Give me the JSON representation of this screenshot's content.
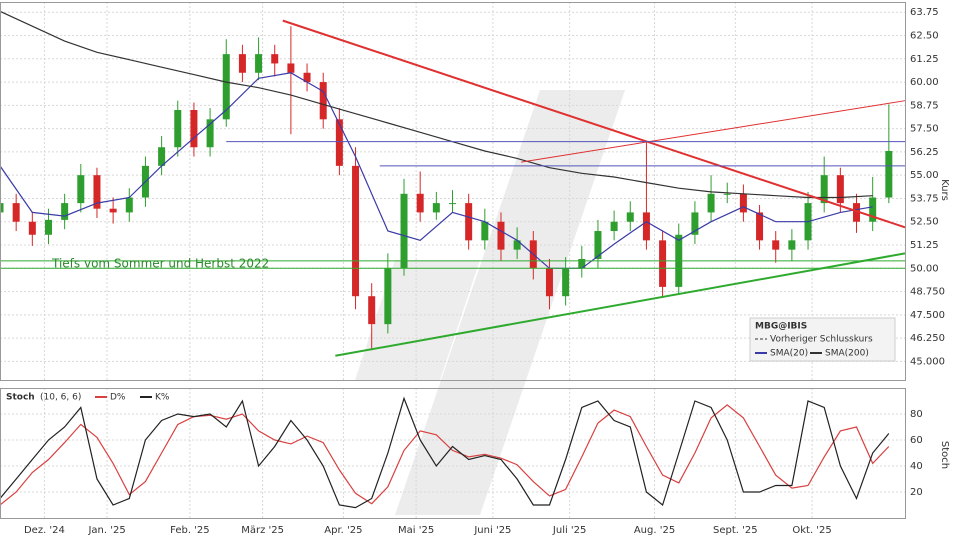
{
  "chart_data": [
    {
      "type": "candlestick",
      "legend_title": "MBG@IBIS",
      "legend_note": "Vorheriger Schlusskurs",
      "y_label": "Kurs",
      "annotation": "Tiefs vom Sommer und Herbst 2022",
      "up_color": "#2e9e2e",
      "down_color": "#d62728",
      "x": [
        0,
        4,
        8,
        12,
        16,
        20,
        24,
        28,
        32,
        36,
        40,
        44,
        48,
        52,
        56,
        60,
        64,
        68,
        72,
        76,
        80,
        84,
        88,
        92,
        96,
        100,
        104,
        108,
        112,
        116,
        120,
        124,
        128,
        132,
        136,
        140,
        144,
        148,
        152,
        156,
        160,
        164,
        168,
        172,
        176,
        180,
        184,
        188,
        192,
        196,
        200,
        204,
        208,
        212,
        216,
        220
      ],
      "open": [
        53.0,
        53.5,
        52.5,
        51.8,
        52.6,
        53.5,
        55.0,
        53.2,
        53.0,
        53.8,
        55.5,
        56.5,
        58.5,
        56.5,
        58.0,
        61.5,
        60.5,
        61.5,
        61.0,
        60.5,
        60.0,
        58.0,
        55.5,
        48.5,
        47.0,
        50.0,
        54.0,
        53.0,
        53.5,
        53.5,
        51.5,
        52.5,
        51.0,
        51.5,
        50.0,
        48.5,
        50.0,
        50.5,
        52.0,
        52.5,
        53.0,
        51.5,
        49.0,
        51.8,
        53.0,
        54.0,
        54.0,
        53.0,
        51.5,
        51.0,
        51.5,
        53.5,
        55.0,
        53.5,
        52.5,
        53.8
      ],
      "high": [
        54.1,
        54.0,
        53.0,
        53.2,
        54.0,
        55.6,
        55.4,
        53.8,
        54.3,
        56.0,
        57.1,
        59.0,
        58.9,
        58.6,
        62.3,
        62.0,
        62.4,
        62.0,
        63.0,
        61.0,
        60.5,
        58.6,
        56.5,
        49.2,
        50.8,
        54.8,
        55.2,
        54.1,
        54.2,
        54.0,
        53.2,
        53.0,
        52.2,
        52.0,
        50.5,
        50.6,
        51.2,
        52.6,
        53.1,
        53.6,
        56.8,
        52.0,
        52.4,
        53.6,
        55.0,
        54.6,
        54.5,
        53.4,
        52.0,
        52.1,
        54.1,
        56.0,
        55.4,
        54.0,
        54.9,
        58.8
      ],
      "low": [
        52.5,
        52.0,
        51.2,
        51.3,
        52.1,
        53.0,
        52.7,
        52.4,
        52.5,
        53.3,
        55.0,
        56.0,
        56.0,
        56.0,
        57.6,
        60.0,
        60.1,
        60.3,
        57.2,
        59.5,
        57.5,
        55.0,
        47.8,
        45.6,
        46.5,
        49.6,
        52.5,
        52.6,
        53.0,
        51.0,
        51.0,
        50.4,
        50.5,
        49.4,
        47.8,
        48.0,
        49.5,
        50.0,
        51.5,
        52.0,
        51.0,
        48.4,
        48.6,
        51.3,
        52.5,
        53.5,
        52.5,
        51.0,
        50.3,
        50.4,
        51.0,
        53.0,
        53.0,
        51.9,
        52.0,
        53.5
      ],
      "close": [
        53.5,
        52.5,
        51.8,
        52.6,
        53.5,
        55.0,
        53.2,
        53.0,
        53.8,
        55.5,
        56.5,
        58.5,
        56.5,
        58.0,
        61.5,
        60.5,
        61.5,
        61.0,
        60.5,
        60.0,
        58.0,
        55.5,
        48.5,
        47.0,
        50.0,
        54.0,
        53.0,
        53.5,
        53.5,
        51.5,
        52.5,
        51.0,
        51.5,
        50.0,
        48.5,
        50.0,
        50.5,
        52.0,
        52.5,
        53.0,
        51.5,
        49.0,
        51.8,
        53.0,
        54.0,
        54.0,
        53.0,
        51.5,
        51.0,
        51.5,
        53.5,
        55.0,
        53.5,
        52.5,
        53.8,
        56.3
      ],
      "series": [
        {
          "name": "SMA(20)",
          "color": "#3b3ba8",
          "x": [
            0,
            8,
            16,
            24,
            32,
            40,
            48,
            56,
            64,
            72,
            80,
            88,
            96,
            104,
            112,
            120,
            128,
            136,
            144,
            152,
            160,
            168,
            176,
            184,
            192,
            200,
            208,
            216
          ],
          "values": [
            55.5,
            53.0,
            52.8,
            53.5,
            53.8,
            55.5,
            57.0,
            58.5,
            60.2,
            60.5,
            59.5,
            56.0,
            52.0,
            51.5,
            53.0,
            52.5,
            51.5,
            50.0,
            50.0,
            51.3,
            52.5,
            51.5,
            52.5,
            53.3,
            52.5,
            52.5,
            53.0,
            53.3
          ]
        },
        {
          "name": "SMA(200)",
          "color": "#333333",
          "x": [
            0,
            8,
            16,
            24,
            32,
            40,
            48,
            56,
            64,
            72,
            80,
            88,
            96,
            104,
            112,
            120,
            128,
            136,
            144,
            152,
            160,
            168,
            176,
            184,
            192,
            200,
            208,
            216
          ],
          "values": [
            63.8,
            63.0,
            62.2,
            61.6,
            61.2,
            60.8,
            60.4,
            60.0,
            59.7,
            59.3,
            58.8,
            58.3,
            57.8,
            57.3,
            56.8,
            56.3,
            55.9,
            55.4,
            55.1,
            54.9,
            54.6,
            54.3,
            54.1,
            54.0,
            53.9,
            53.8,
            53.8,
            53.9
          ]
        }
      ],
      "trendlines": [
        {
          "x": [
            70,
            224
          ],
          "y": [
            63.3,
            52.2
          ],
          "color": "#e03030",
          "width": 2
        },
        {
          "x": [
            129,
            224
          ],
          "y": [
            55.7,
            59.0
          ],
          "color": "#e03030",
          "width": 1
        },
        {
          "x": [
            83,
            224
          ],
          "y": [
            45.3,
            50.8
          ],
          "color": "#2eaa2e",
          "width": 2
        },
        {
          "x": [
            56,
            224
          ],
          "y": [
            56.8,
            56.8
          ],
          "color": "#5555bb",
          "width": 1
        },
        {
          "x": [
            94,
            224
          ],
          "y": [
            55.5,
            55.5
          ],
          "color": "#5555bb",
          "width": 1
        },
        {
          "x": [
            0,
            224
          ],
          "y": [
            50.4,
            50.4
          ],
          "color": "#2eaa2e",
          "width": 1
        },
        {
          "x": [
            0,
            224
          ],
          "y": [
            50.0,
            50.0
          ],
          "color": "#2eaa2e",
          "width": 1
        }
      ],
      "xlim": [
        0,
        224
      ],
      "ylim": [
        44,
        64.3
      ],
      "yticks": [
        {
          "value": 45,
          "label": "45.000"
        },
        {
          "value": 46.25,
          "label": "46.250"
        },
        {
          "value": 47.5,
          "label": "47.500"
        },
        {
          "value": 48.75,
          "label": "48.750"
        },
        {
          "value": 50,
          "label": "50.00"
        },
        51.25,
        {
          "value": 52.5,
          "label": "52.50"
        },
        53.75,
        {
          "value": 55,
          "label": "55.00"
        },
        56.25,
        {
          "value": 57.5,
          "label": "57.50"
        },
        58.75,
        {
          "value": 60,
          "label": "60.00"
        },
        61.25,
        {
          "value": 62.5,
          "label": "62.50"
        },
        63.75
      ],
      "grid": true
    },
    {
      "type": "line",
      "title": "Stoch",
      "subtitle": "(10, 6, 6)",
      "y_label": "Stoch",
      "x": [
        0,
        4,
        8,
        12,
        16,
        20,
        24,
        28,
        32,
        36,
        40,
        44,
        48,
        52,
        56,
        60,
        64,
        68,
        72,
        76,
        80,
        84,
        88,
        92,
        96,
        100,
        104,
        108,
        112,
        116,
        120,
        124,
        128,
        132,
        136,
        140,
        144,
        148,
        152,
        156,
        160,
        164,
        168,
        172,
        176,
        180,
        184,
        188,
        192,
        196,
        200,
        204,
        208,
        212,
        216,
        220
      ],
      "series": [
        {
          "name": "D%",
          "color": "#d94040",
          "values": [
            10,
            20,
            35,
            45,
            58,
            72,
            62,
            42,
            18,
            28,
            50,
            72,
            78,
            79,
            76,
            80,
            67,
            60,
            57,
            63,
            58,
            37,
            19,
            11,
            24,
            52,
            67,
            64,
            52,
            47,
            49,
            46,
            41,
            28,
            17,
            22,
            47,
            73,
            83,
            78,
            55,
            33,
            27,
            50,
            77,
            87,
            77,
            55,
            33,
            23,
            25,
            47,
            67,
            70,
            42,
            55
          ]
        },
        {
          "name": "K%",
          "color": "#222222",
          "values": [
            15,
            30,
            45,
            60,
            70,
            85,
            30,
            10,
            15,
            60,
            75,
            80,
            78,
            80,
            70,
            90,
            40,
            55,
            75,
            60,
            40,
            10,
            8,
            15,
            50,
            92,
            60,
            40,
            55,
            45,
            48,
            45,
            30,
            10,
            10,
            45,
            85,
            90,
            75,
            70,
            20,
            10,
            50,
            90,
            85,
            60,
            20,
            20,
            25,
            25,
            90,
            85,
            40,
            15,
            50,
            65
          ]
        }
      ],
      "xlim": [
        0,
        224
      ],
      "ylim": [
        0,
        100
      ],
      "yticks": [
        20,
        40,
        60,
        80
      ],
      "xticks": [
        {
          "value": 11,
          "label": "Dez. '24"
        },
        {
          "value": 26.5,
          "label": "Jan. '25"
        },
        {
          "value": 47,
          "label": "Feb. '25"
        },
        {
          "value": 65,
          "label": "März '25"
        },
        {
          "value": 85,
          "label": "Apr. '25"
        },
        {
          "value": 103,
          "label": "Mai '25"
        },
        {
          "value": 122,
          "label": "Juni '25"
        },
        {
          "value": 141,
          "label": "Juli '25"
        },
        {
          "value": 162,
          "label": "Aug. '25"
        },
        {
          "value": 182,
          "label": "Sept. '25"
        },
        {
          "value": 201,
          "label": "Okt. '25"
        }
      ],
      "grid": true
    }
  ]
}
